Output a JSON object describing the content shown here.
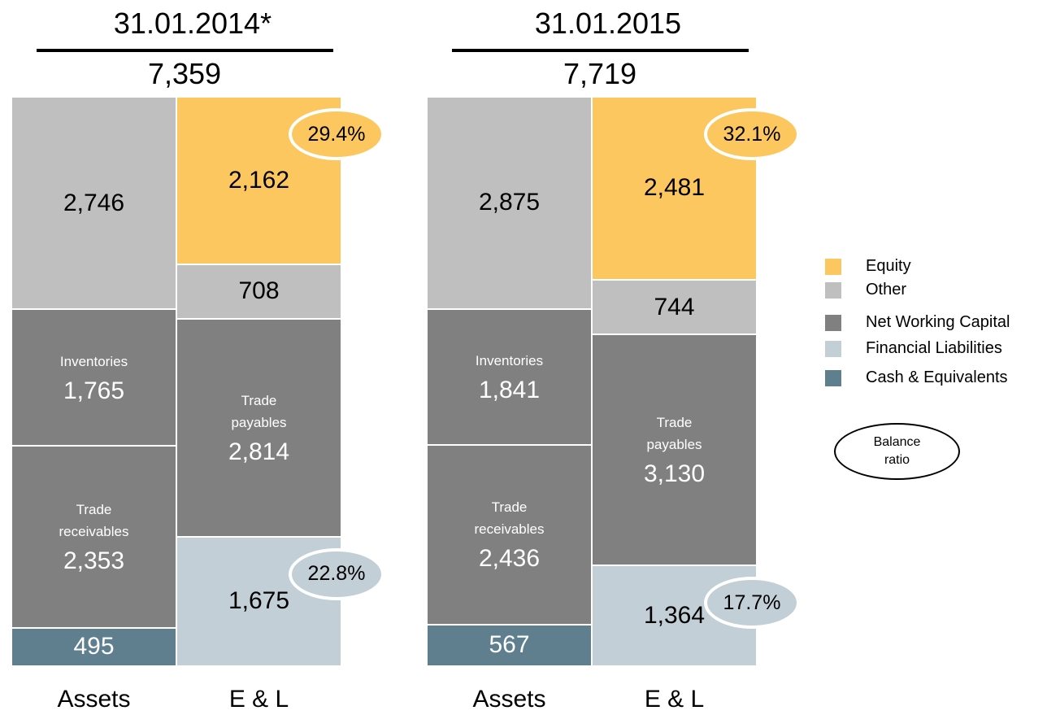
{
  "chart_data": [
    {
      "type": "bar",
      "stacked": true,
      "title": "31.01.2014*",
      "total": 7359,
      "total_label": "7,359",
      "categories": [
        "Assets",
        "E & L"
      ],
      "stacks": [
        [
          {
            "value": 2746,
            "value_label": "2,746",
            "color": "#bfbfbf"
          },
          {
            "label": "Inventories",
            "value": 1765,
            "value_label": "1,765",
            "color": "#808080"
          },
          {
            "label": "Trade receivables",
            "value": 2353,
            "value_label": "2,353",
            "color": "#808080"
          },
          {
            "value": 495,
            "value_label": "495",
            "color": "#5f7f8f"
          }
        ],
        [
          {
            "value": 2162,
            "value_label": "2,162",
            "color": "#fdc75f",
            "ratio": 29.4,
            "ratio_label": "29.4%"
          },
          {
            "value": 708,
            "value_label": "708",
            "color": "#bfbfbf"
          },
          {
            "label": "Trade payables",
            "value": 2814,
            "value_label": "2,814",
            "color": "#808080"
          },
          {
            "value": 1675,
            "value_label": "1,675",
            "color": "#c2cfd6",
            "ratio": 22.8,
            "ratio_label": "22.8%"
          }
        ]
      ]
    },
    {
      "type": "bar",
      "stacked": true,
      "title": "31.01.2015",
      "total": 7719,
      "total_label": "7,719",
      "categories": [
        "Assets",
        "E & L"
      ],
      "stacks": [
        [
          {
            "value": 2875,
            "value_label": "2,875",
            "color": "#bfbfbf"
          },
          {
            "label": "Inventories",
            "value": 1841,
            "value_label": "1,841",
            "color": "#808080"
          },
          {
            "label": "Trade receivables",
            "value": 2436,
            "value_label": "2,436",
            "color": "#808080"
          },
          {
            "value": 567,
            "value_label": "567",
            "color": "#5f7f8f"
          }
        ],
        [
          {
            "value": 2481,
            "value_label": "2,481",
            "color": "#fdc75f",
            "ratio": 32.1,
            "ratio_label": "32.1%"
          },
          {
            "value": 744,
            "value_label": "744",
            "color": "#bfbfbf"
          },
          {
            "label": "Trade payables",
            "value": 3130,
            "value_label": "3,130",
            "color": "#808080"
          },
          {
            "value": 1364,
            "value_label": "1,364",
            "color": "#c2cfd6",
            "ratio": 17.7,
            "ratio_label": "17.7%"
          }
        ]
      ]
    }
  ],
  "legend": {
    "entries": [
      {
        "name": "Equity",
        "color": "#fdc75f"
      },
      {
        "name": "Other",
        "color": "#bfbfbf"
      },
      {
        "name": "Net Working Capital",
        "color": "#808080"
      },
      {
        "name": "Financial Liabilities",
        "color": "#c2cfd6"
      },
      {
        "name": "Cash & Equivalents",
        "color": "#5f7f8f"
      }
    ],
    "ratio_key": "Balance ratio"
  }
}
